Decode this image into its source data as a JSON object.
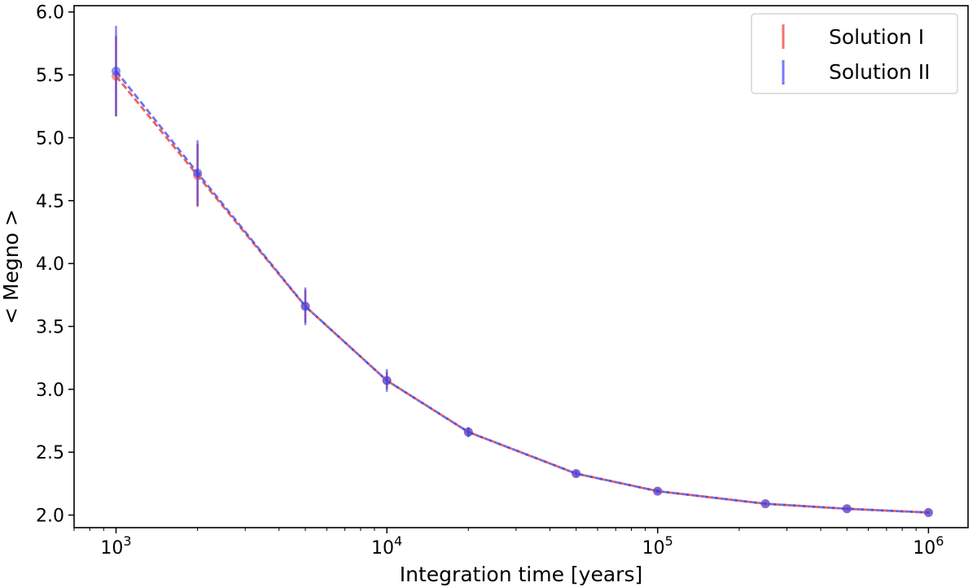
{
  "chart_data": {
    "type": "line",
    "xscale": "log",
    "x": [
      1000,
      2000,
      5000,
      10000,
      20000,
      50000,
      100000,
      250000,
      500000,
      1000000
    ],
    "xlabel": "Integration time [years]",
    "ylabel": "< Megno >",
    "xlim": [
      700,
      1400000
    ],
    "ylim": [
      1.9,
      6.05
    ],
    "y_ticks": [
      2.0,
      2.5,
      3.0,
      3.5,
      4.0,
      4.5,
      5.0,
      5.5,
      6.0
    ],
    "y_tick_labels": [
      "2.0",
      "2.5",
      "3.0",
      "3.5",
      "4.0",
      "4.5",
      "5.0",
      "5.5",
      "6.0"
    ],
    "x_ticks": [
      {
        "value": 1000,
        "base": "10",
        "exp": "3"
      },
      {
        "value": 10000,
        "base": "10",
        "exp": "4"
      },
      {
        "value": 100000,
        "base": "10",
        "exp": "5"
      },
      {
        "value": 1000000,
        "base": "10",
        "exp": "6"
      }
    ],
    "legend_position": "top-right",
    "series": [
      {
        "name": "Solution I",
        "color": "#f0504a",
        "values": [
          5.49,
          4.7,
          3.66,
          3.07,
          2.66,
          2.33,
          2.19,
          2.09,
          2.05,
          2.02
        ],
        "errors": [
          0.32,
          0.25,
          0.13,
          0.07,
          0.035,
          0.02,
          0.015,
          0.01,
          0.01,
          0.01
        ]
      },
      {
        "name": "Solution II",
        "color": "#3a44ee",
        "values": [
          5.53,
          4.72,
          3.66,
          3.07,
          2.66,
          2.33,
          2.19,
          2.09,
          2.05,
          2.02
        ],
        "errors": [
          0.36,
          0.26,
          0.15,
          0.09,
          0.04,
          0.02,
          0.015,
          0.01,
          0.01,
          0.01
        ]
      }
    ]
  }
}
